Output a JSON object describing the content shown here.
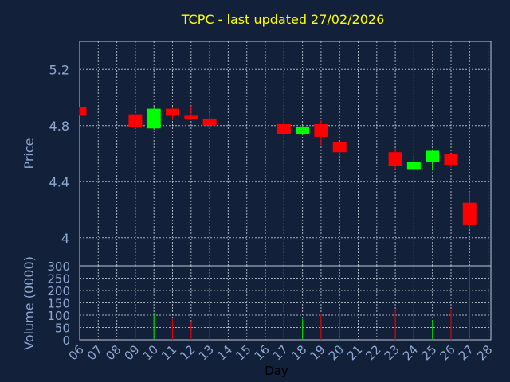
{
  "chart_data": [
    {
      "type": "candlestick",
      "title": "TCPC - last updated 27/02/2026",
      "ylabel": "Price",
      "ylim": [
        3.8,
        5.4
      ],
      "yticks": [
        "4",
        "4.4",
        "4.8",
        "5.2"
      ],
      "ytick_values": [
        4.0,
        4.4,
        4.8,
        5.2
      ],
      "grid": true,
      "candles": [
        {
          "day": "06",
          "open": 4.93,
          "close": 4.87,
          "high": 4.93,
          "low": 4.87
        },
        {
          "day": "09",
          "open": 4.88,
          "close": 4.79,
          "high": 4.88,
          "low": 4.78
        },
        {
          "day": "10",
          "open": 4.78,
          "close": 4.92,
          "high": 4.93,
          "low": 4.77
        },
        {
          "day": "11",
          "open": 4.92,
          "close": 4.87,
          "high": 4.93,
          "low": 4.84
        },
        {
          "day": "12",
          "open": 4.87,
          "close": 4.85,
          "high": 4.94,
          "low": 4.84
        },
        {
          "day": "13",
          "open": 4.85,
          "close": 4.8,
          "high": 4.89,
          "low": 4.78
        },
        {
          "day": "17",
          "open": 4.81,
          "close": 4.74,
          "high": 4.86,
          "low": 4.72
        },
        {
          "day": "18",
          "open": 4.74,
          "close": 4.79,
          "high": 4.8,
          "low": 4.73
        },
        {
          "day": "19",
          "open": 4.81,
          "close": 4.72,
          "high": 4.84,
          "low": 4.66
        },
        {
          "day": "20",
          "open": 4.68,
          "close": 4.61,
          "high": 4.68,
          "low": 4.58
        },
        {
          "day": "23",
          "open": 4.61,
          "close": 4.51,
          "high": 4.64,
          "low": 4.49
        },
        {
          "day": "24",
          "open": 4.49,
          "close": 4.54,
          "high": 4.59,
          "low": 4.49
        },
        {
          "day": "25",
          "open": 4.54,
          "close": 4.62,
          "high": 4.63,
          "low": 4.48
        },
        {
          "day": "26",
          "open": 4.6,
          "close": 4.52,
          "high": 4.6,
          "low": 4.5
        },
        {
          "day": "27",
          "open": 4.25,
          "close": 4.09,
          "high": 4.33,
          "low": 4.06
        }
      ],
      "colors": {
        "up": "#00ff00",
        "down": "#ff0000"
      }
    },
    {
      "type": "bar",
      "ylabel": "Volume (0000)",
      "xlabel": "Day",
      "ylim": [
        0,
        300
      ],
      "yticks": [
        "0",
        "50",
        "100",
        "150",
        "200",
        "250",
        "300"
      ],
      "ytick_values": [
        0,
        50,
        100,
        150,
        200,
        250,
        300
      ],
      "categories": [
        "06",
        "07",
        "08",
        "09",
        "10",
        "11",
        "12",
        "13",
        "14",
        "15",
        "16",
        "17",
        "18",
        "19",
        "20",
        "21",
        "22",
        "23",
        "24",
        "25",
        "26",
        "27",
        "28"
      ],
      "values": [
        0,
        0,
        0,
        80,
        110,
        85,
        75,
        80,
        0,
        0,
        0,
        95,
        85,
        105,
        125,
        0,
        0,
        125,
        120,
        80,
        120,
        300,
        0
      ],
      "bar_colors": [
        "none",
        "none",
        "none",
        "red",
        "green",
        "red",
        "red",
        "red",
        "none",
        "none",
        "none",
        "red",
        "green",
        "red",
        "red",
        "none",
        "none",
        "red",
        "green",
        "green",
        "red",
        "red",
        "none"
      ]
    }
  ]
}
